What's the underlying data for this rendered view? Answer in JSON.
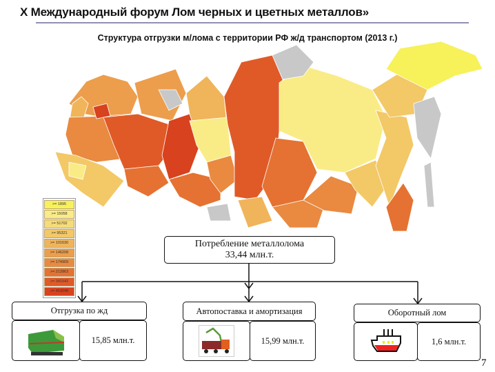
{
  "header": {
    "title": "X Международный форум Лом черных и цветных металлов»",
    "subtitle": "Структура отгрузки м/лома с территории РФ ж/д транспортом (2013 г.)"
  },
  "legend": {
    "items": [
      {
        "label": ">= 1895",
        "color": "#f7f15a"
      },
      {
        "label": ">= 15058",
        "color": "#f9ec86"
      },
      {
        "label": ">= 51702",
        "color": "#f6dc78"
      },
      {
        "label": ">= 95321",
        "color": "#f3c867"
      },
      {
        "label": ">= 101630",
        "color": "#f0b45a"
      },
      {
        "label": ">= 146208",
        "color": "#ec9e4c"
      },
      {
        "label": ">= 174909",
        "color": "#e98a40"
      },
      {
        "label": ">= 212863",
        "color": "#e57232"
      },
      {
        "label": ">= 341542",
        "color": "#e05a28"
      },
      {
        "label": ">= 453048",
        "color": "#d8421e"
      }
    ]
  },
  "consumption": {
    "label": "Потребление металлолома",
    "value": "33,44 млн.т."
  },
  "branches": [
    {
      "label": "Отгрузка по жд",
      "value": "15,85 млн.т.",
      "icon": "locomotive-icon"
    },
    {
      "label": "Автопоставка и амортизация",
      "value": "15,99 млн.т.",
      "icon": "truck-icon"
    },
    {
      "label": "Оборотный лом",
      "value": "1,6 млн.т.",
      "icon": "furnace-icon"
    }
  ],
  "page_number": "7"
}
